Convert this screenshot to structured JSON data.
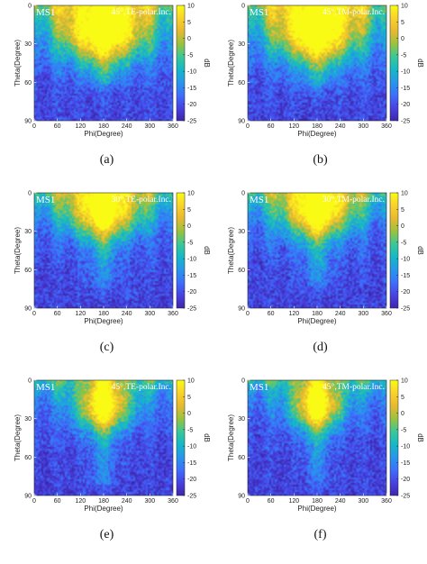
{
  "colors": {
    "colormap": [
      "#3e26a8",
      "#4742e4",
      "#3d6ffd",
      "#2797eb",
      "#13b9c6",
      "#3ac897",
      "#9bc23c",
      "#e7b92f",
      "#f9d22a",
      "#f9fb15"
    ]
  },
  "chart_data": [
    {
      "type": "heatmap",
      "id": "a",
      "caption": "(a)",
      "surface_label": "MS1",
      "incidence_label": "45°,TE-polar.Inc.",
      "xlabel": "Phi(Degree)",
      "ylabel": "Theta(Degree)",
      "colorbar_label": "dB",
      "x_ticks": [
        "0",
        "60",
        "120",
        "180",
        "240",
        "300",
        "360"
      ],
      "y_ticks": [
        "0",
        "30",
        "60",
        "90"
      ],
      "colorbar_ticks": [
        "10",
        "5",
        "0",
        "-5",
        "-10",
        "-15",
        "-20",
        "-25"
      ],
      "xlim": [
        0,
        360
      ],
      "ylim": [
        0,
        90
      ],
      "clim": [
        -25,
        10
      ],
      "specular_phi": 180,
      "specular_theta": 45,
      "hot_peak_db": 8,
      "tail_theta_extent": 60,
      "spread": 1.0
    },
    {
      "type": "heatmap",
      "id": "b",
      "caption": "(b)",
      "surface_label": "MS1",
      "incidence_label": "45°,TM-polar.Inc.",
      "xlabel": "Phi(Degree)",
      "ylabel": "Theta(Degree)",
      "colorbar_label": "dB",
      "x_ticks": [
        "0",
        "60",
        "120",
        "180",
        "240",
        "300",
        "360"
      ],
      "y_ticks": [
        "0",
        "30",
        "60",
        "90"
      ],
      "colorbar_ticks": [
        "10",
        "5",
        "0",
        "-5",
        "-10",
        "-15",
        "-20",
        "-25"
      ],
      "xlim": [
        0,
        360
      ],
      "ylim": [
        0,
        90
      ],
      "clim": [
        -25,
        10
      ],
      "specular_phi": 180,
      "specular_theta": 45,
      "hot_peak_db": 8,
      "tail_theta_extent": 60,
      "spread": 1.0
    },
    {
      "type": "heatmap",
      "id": "c",
      "caption": "(c)",
      "surface_label": "MS1",
      "incidence_label": "30°,TE-polar.Inc.",
      "xlabel": "Phi(Degree)",
      "ylabel": "Theta(Degree)",
      "colorbar_label": "dB",
      "x_ticks": [
        "0",
        "60",
        "120",
        "180",
        "240",
        "300",
        "360"
      ],
      "y_ticks": [
        "0",
        "30",
        "60",
        "90"
      ],
      "colorbar_ticks": [
        "10",
        "5",
        "0",
        "-5",
        "-10",
        "-15",
        "-20",
        "-25"
      ],
      "xlim": [
        0,
        360
      ],
      "ylim": [
        0,
        90
      ],
      "clim": [
        -25,
        10
      ],
      "specular_phi": 180,
      "specular_theta": 30,
      "hot_peak_db": 6,
      "tail_theta_extent": 70,
      "spread": 0.7
    },
    {
      "type": "heatmap",
      "id": "d",
      "caption": "(d)",
      "surface_label": "MS1",
      "incidence_label": "30°,TM-polar.Inc.",
      "xlabel": "Phi(Degree)",
      "ylabel": "Theta(Degree)",
      "colorbar_label": "dB",
      "x_ticks": [
        "0",
        "60",
        "120",
        "180",
        "240",
        "300",
        "360"
      ],
      "y_ticks": [
        "0",
        "30",
        "60",
        "90"
      ],
      "colorbar_ticks": [
        "10",
        "5",
        "0",
        "-5",
        "-10",
        "-15",
        "-20",
        "-25"
      ],
      "xlim": [
        0,
        360
      ],
      "ylim": [
        0,
        90
      ],
      "clim": [
        -25,
        10
      ],
      "specular_phi": 180,
      "specular_theta": 30,
      "hot_peak_db": 6,
      "tail_theta_extent": 70,
      "spread": 0.7
    },
    {
      "type": "heatmap",
      "id": "e",
      "caption": "(e)",
      "surface_label": "MS1",
      "incidence_label": "45°,TE-polar.Inc.",
      "xlabel": "Phi(Degree)",
      "ylabel": "Theta(Degree)",
      "colorbar_label": "dB",
      "x_ticks": [
        "0",
        "60",
        "120",
        "180",
        "240",
        "300",
        "360"
      ],
      "y_ticks": [
        "0",
        "30",
        "60",
        "90"
      ],
      "colorbar_ticks": [
        "10",
        "5",
        "0",
        "-5",
        "-10",
        "-15",
        "-20",
        "-25"
      ],
      "xlim": [
        0,
        360
      ],
      "ylim": [
        0,
        90
      ],
      "clim": [
        -25,
        10
      ],
      "specular_phi": 180,
      "specular_theta": 45,
      "hot_peak_db": 5,
      "tail_theta_extent": 80,
      "spread": 0.45
    },
    {
      "type": "heatmap",
      "id": "f",
      "caption": "(f)",
      "surface_label": "MS1",
      "incidence_label": "45°,TM-polar.Inc.",
      "xlabel": "Phi(Degree)",
      "ylabel": "Theta(Degree)",
      "colorbar_label": "dB",
      "x_ticks": [
        "0",
        "60",
        "120",
        "180",
        "240",
        "300",
        "360"
      ],
      "y_ticks": [
        "0",
        "30",
        "60",
        "90"
      ],
      "colorbar_ticks": [
        "10",
        "5",
        "0",
        "-5",
        "-10",
        "-15",
        "-20",
        "-25"
      ],
      "xlim": [
        0,
        360
      ],
      "ylim": [
        0,
        90
      ],
      "clim": [
        -25,
        10
      ],
      "specular_phi": 180,
      "specular_theta": 45,
      "hot_peak_db": 5,
      "tail_theta_extent": 80,
      "spread": 0.4
    }
  ]
}
